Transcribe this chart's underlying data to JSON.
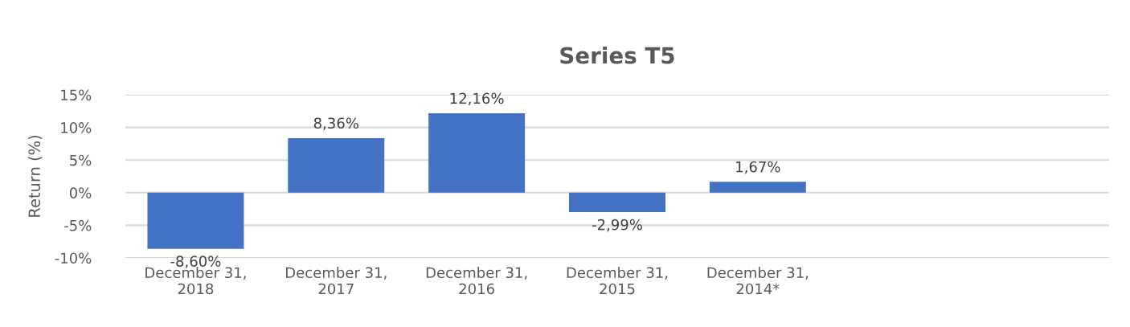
{
  "chart_data": {
    "type": "bar",
    "title": "Series T5",
    "ylabel": "Return (%)",
    "categories": [
      "December 31,\n2018",
      "December 31,\n2017",
      "December 31,\n2016",
      "December 31,\n2015",
      "December 31,\n2014*",
      null,
      null
    ],
    "values": [
      -8.6,
      8.36,
      12.16,
      -2.99,
      1.67,
      null,
      null
    ],
    "value_labels": [
      "-8,60%",
      "8,36%",
      "12,16%",
      "-2,99%",
      "1,67%",
      null,
      null
    ],
    "color": "#4472c4",
    "ylim": [
      -10,
      15
    ],
    "yticks": [
      {
        "value": -10,
        "label": "-10%"
      },
      {
        "value": -5,
        "label": "-5%"
      },
      {
        "value": 0,
        "label": "0%"
      },
      {
        "value": 5,
        "label": "5%"
      },
      {
        "value": 10,
        "label": "10%"
      },
      {
        "value": 15,
        "label": "15%"
      }
    ],
    "grid": "y",
    "legend": false
  }
}
